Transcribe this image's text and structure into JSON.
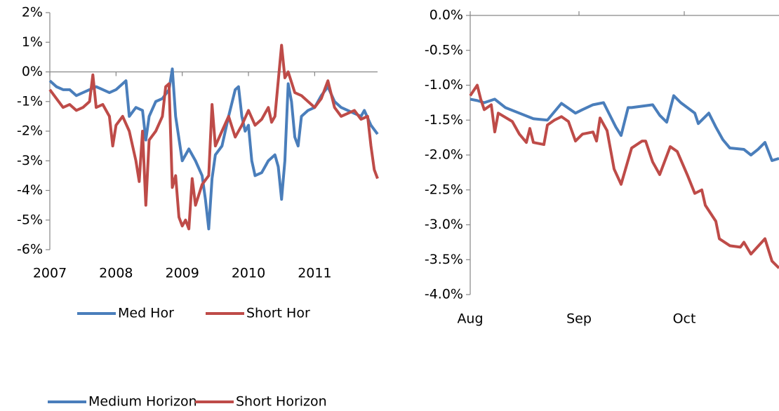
{
  "chart_data": [
    {
      "type": "line",
      "legend": "bottom",
      "xlim": [
        2007,
        2011.95
      ],
      "xticks": [
        2007,
        2008,
        2009,
        2010,
        2011
      ],
      "ylim": [
        -6,
        2
      ],
      "yticks": [
        {
          "value": -6,
          "label": "-6%"
        },
        {
          "value": -5,
          "label": "-5%"
        },
        {
          "value": -4,
          "label": "-4%"
        },
        {
          "value": -3,
          "label": "-3%"
        },
        {
          "value": -2,
          "label": "-2%"
        },
        {
          "value": -1,
          "label": "-1%"
        },
        {
          "value": 0,
          "label": "0%"
        },
        {
          "value": 1,
          "label": "1%"
        },
        {
          "value": 2,
          "label": "2%"
        }
      ],
      "series": [
        {
          "name": "Med Hor",
          "color": "#4a7ebb",
          "x": [
            2007.0,
            2007.1,
            2007.2,
            2007.3,
            2007.4,
            2007.5,
            2007.6,
            2007.7,
            2007.8,
            2007.9,
            2008.0,
            2008.1,
            2008.15,
            2008.2,
            2008.3,
            2008.4,
            2008.45,
            2008.5,
            2008.6,
            2008.7,
            2008.8,
            2008.85,
            2008.9,
            2009.0,
            2009.1,
            2009.2,
            2009.3,
            2009.35,
            2009.4,
            2009.45,
            2009.5,
            2009.6,
            2009.7,
            2009.8,
            2009.85,
            2009.9,
            2009.95,
            2010.0,
            2010.05,
            2010.1,
            2010.2,
            2010.3,
            2010.4,
            2010.45,
            2010.5,
            2010.55,
            2010.6,
            2010.65,
            2010.7,
            2010.75,
            2010.8,
            2010.9,
            2011.0,
            2011.1,
            2011.2,
            2011.3,
            2011.4,
            2011.5,
            2011.6,
            2011.7,
            2011.75,
            2011.85,
            2011.95
          ],
          "values": [
            -0.3,
            -0.5,
            -0.6,
            -0.6,
            -0.8,
            -0.7,
            -0.6,
            -0.5,
            -0.6,
            -0.7,
            -0.6,
            -0.4,
            -0.3,
            -1.5,
            -1.2,
            -1.3,
            -2.3,
            -1.5,
            -1.0,
            -0.9,
            -0.6,
            0.1,
            -1.5,
            -3.0,
            -2.6,
            -3.0,
            -3.5,
            -4.3,
            -5.3,
            -3.6,
            -2.8,
            -2.5,
            -1.5,
            -0.6,
            -0.5,
            -1.5,
            -2.0,
            -1.8,
            -3.0,
            -3.5,
            -3.4,
            -3.0,
            -2.8,
            -3.2,
            -4.3,
            -3.0,
            -0.4,
            -1.0,
            -2.2,
            -2.5,
            -1.5,
            -1.3,
            -1.2,
            -0.8,
            -0.5,
            -1.0,
            -1.2,
            -1.3,
            -1.4,
            -1.5,
            -1.3,
            -1.8,
            -2.1
          ]
        },
        {
          "name": "Short Hor",
          "color": "#be4b48",
          "x": [
            2007.0,
            2007.1,
            2007.2,
            2007.3,
            2007.4,
            2007.5,
            2007.6,
            2007.65,
            2007.7,
            2007.8,
            2007.9,
            2007.95,
            2008.0,
            2008.1,
            2008.2,
            2008.3,
            2008.35,
            2008.4,
            2008.45,
            2008.5,
            2008.6,
            2008.7,
            2008.75,
            2008.8,
            2008.85,
            2008.9,
            2008.95,
            2009.0,
            2009.05,
            2009.1,
            2009.15,
            2009.2,
            2009.3,
            2009.4,
            2009.45,
            2009.5,
            2009.6,
            2009.7,
            2009.8,
            2009.9,
            2010.0,
            2010.1,
            2010.2,
            2010.3,
            2010.35,
            2010.4,
            2010.45,
            2010.5,
            2010.55,
            2010.6,
            2010.7,
            2010.8,
            2010.9,
            2011.0,
            2011.1,
            2011.2,
            2011.3,
            2011.4,
            2011.5,
            2011.6,
            2011.7,
            2011.8,
            2011.85,
            2011.9,
            2011.95
          ],
          "values": [
            -0.6,
            -0.9,
            -1.2,
            -1.1,
            -1.3,
            -1.2,
            -1.0,
            -0.1,
            -1.2,
            -1.1,
            -1.5,
            -2.5,
            -1.8,
            -1.5,
            -2.0,
            -3.0,
            -3.7,
            -2.0,
            -4.5,
            -2.3,
            -2.0,
            -1.5,
            -0.5,
            -0.4,
            -3.9,
            -3.5,
            -4.9,
            -5.2,
            -5.0,
            -5.3,
            -3.6,
            -4.5,
            -3.8,
            -3.5,
            -1.1,
            -2.5,
            -2.0,
            -1.5,
            -2.2,
            -1.8,
            -1.3,
            -1.8,
            -1.6,
            -1.2,
            -1.7,
            -1.5,
            -0.3,
            0.9,
            -0.2,
            0.0,
            -0.7,
            -0.8,
            -1.0,
            -1.2,
            -0.9,
            -0.3,
            -1.2,
            -1.5,
            -1.4,
            -1.3,
            -1.6,
            -1.5,
            -2.5,
            -3.3,
            -3.6
          ]
        }
      ]
    },
    {
      "type": "line",
      "legend": "bottom-left",
      "xlim": [
        0,
        88
      ],
      "xticks": [
        {
          "value": 0,
          "label": "Aug"
        },
        {
          "value": 31,
          "label": "Sep"
        },
        {
          "value": 61,
          "label": "Oct"
        }
      ],
      "ylim": [
        -4,
        0
      ],
      "yticks": [
        {
          "value": -4,
          "label": "-4.0%"
        },
        {
          "value": -3.5,
          "label": "-3.5%"
        },
        {
          "value": -3,
          "label": "-3.0%"
        },
        {
          "value": -2.5,
          "label": "-2.5%"
        },
        {
          "value": -2,
          "label": "-2.0%"
        },
        {
          "value": -1.5,
          "label": "-1.5%"
        },
        {
          "value": -1,
          "label": "-1.0%"
        },
        {
          "value": -0.5,
          "label": "-0.5%"
        },
        {
          "value": 0,
          "label": "0.0%"
        }
      ],
      "series": [
        {
          "name": "Medium Horizon",
          "color": "#4a7ebb",
          "x": [
            0,
            2,
            4,
            7,
            10,
            14,
            18,
            22,
            26,
            30,
            32,
            35,
            38,
            40,
            41.5,
            43,
            45,
            46,
            52,
            54,
            56,
            58,
            60,
            64,
            65,
            68,
            70,
            72,
            74,
            78,
            80,
            82,
            84,
            86,
            88
          ],
          "values": [
            -1.2,
            -1.22,
            -1.25,
            -1.2,
            -1.32,
            -1.4,
            -1.48,
            -1.5,
            -1.26,
            -1.4,
            -1.35,
            -1.28,
            -1.25,
            -1.45,
            -1.6,
            -1.72,
            -1.32,
            -1.32,
            -1.28,
            -1.43,
            -1.53,
            -1.15,
            -1.25,
            -1.4,
            -1.55,
            -1.4,
            -1.6,
            -1.78,
            -1.9,
            -1.92,
            -2.0,
            -1.92,
            -1.82,
            -2.08,
            -2.05
          ]
        },
        {
          "name": "Short Horizon",
          "color": "#be4b48",
          "x": [
            0,
            2,
            3,
            4,
            6,
            7,
            8,
            12,
            14,
            16,
            17,
            18,
            21,
            22,
            24,
            26,
            28,
            30,
            32,
            35,
            36,
            37,
            39,
            41,
            43,
            46,
            49,
            50,
            52,
            54,
            57,
            59,
            62,
            64,
            66,
            67,
            70,
            71,
            74,
            77,
            78,
            80,
            84,
            86,
            88
          ],
          "values": [
            -1.15,
            -1.0,
            -1.2,
            -1.35,
            -1.28,
            -1.67,
            -1.4,
            -1.52,
            -1.7,
            -1.82,
            -1.62,
            -1.82,
            -1.85,
            -1.57,
            -1.5,
            -1.45,
            -1.52,
            -1.8,
            -1.7,
            -1.67,
            -1.8,
            -1.47,
            -1.65,
            -2.2,
            -2.42,
            -1.9,
            -1.8,
            -1.8,
            -2.1,
            -2.28,
            -1.88,
            -1.95,
            -2.3,
            -2.55,
            -2.5,
            -2.72,
            -2.95,
            -3.2,
            -3.3,
            -3.32,
            -3.25,
            -3.42,
            -3.2,
            -3.52,
            -3.62
          ]
        }
      ]
    }
  ]
}
